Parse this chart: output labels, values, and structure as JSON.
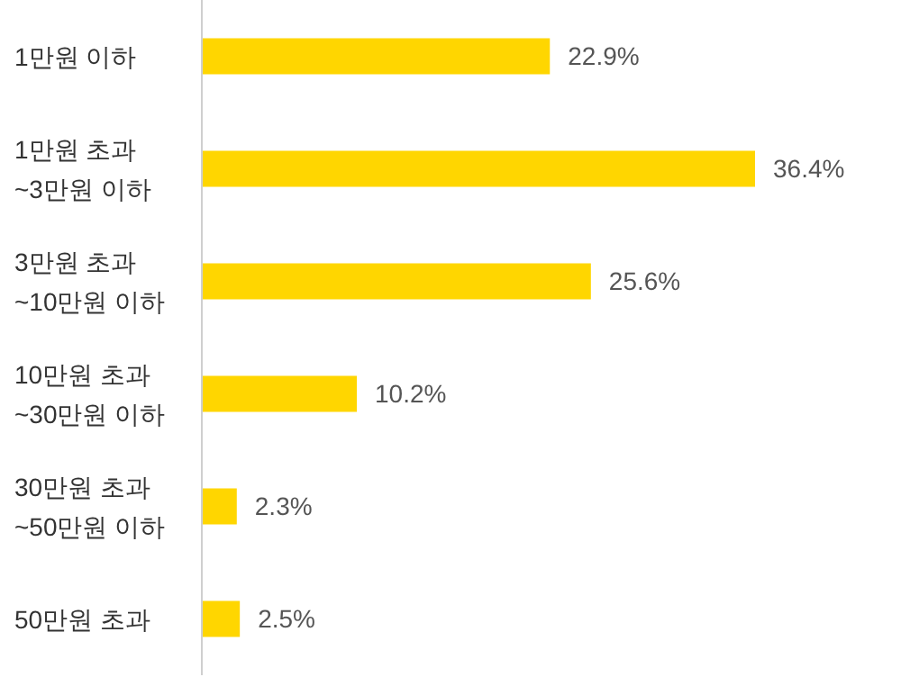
{
  "chart_data": {
    "type": "bar",
    "orientation": "horizontal",
    "categories": [
      "1만원 이하",
      "1만원 초과\n~3만원 이하",
      "3만원 초과\n~10만원 이하",
      "10만원 초과\n~30만원 이하",
      "30만원 초과\n~50만원 이하",
      "50만원 초과"
    ],
    "values": [
      22.9,
      36.4,
      25.6,
      10.2,
      2.3,
      2.5
    ],
    "value_labels": [
      "22.9%",
      "36.4%",
      "25.6%",
      "10.2%",
      "2.3%",
      "2.5%"
    ],
    "color": "#ffd600",
    "grid": false,
    "legend": false
  }
}
